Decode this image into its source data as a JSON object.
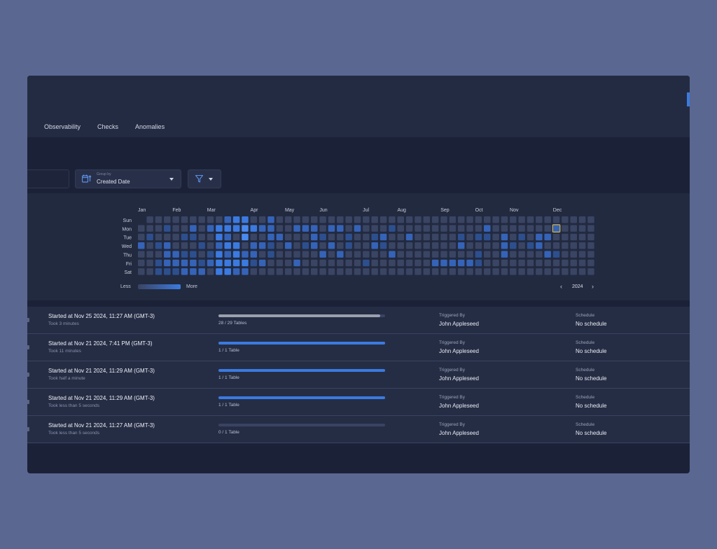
{
  "tabs": [
    "Observability",
    "Checks",
    "Anomalies"
  ],
  "date_select": {
    "small_label": "Group by",
    "value": "Created Date"
  },
  "heatmap": {
    "days": [
      "Sun",
      "Mon",
      "Tue",
      "Wed",
      "Thu",
      "Fri",
      "Sat"
    ],
    "months": [
      "Jan",
      "Feb",
      "Mar",
      "Apr",
      "May",
      "Jun",
      "Jul",
      "Aug",
      "Sep",
      "Oct",
      "Nov",
      "Dec"
    ],
    "month_start_weeks": [
      0,
      4,
      8,
      13,
      17,
      21,
      26,
      30,
      35,
      39,
      43,
      48
    ],
    "weeks": 53,
    "year": "2024",
    "legend_less": "Less",
    "legend_more": "More",
    "highlight": {
      "week": 48,
      "day": 1
    },
    "colors": [
      "#3a4463",
      "#2d4f8e",
      "#3563b8",
      "#3b7ae0",
      "#4a8af0"
    ],
    "active": [
      [
        0,
        3,
        2
      ],
      [
        1,
        2,
        1
      ],
      [
        2,
        3,
        1
      ],
      [
        2,
        5,
        1
      ],
      [
        2,
        6,
        1
      ],
      [
        3,
        1,
        1
      ],
      [
        3,
        3,
        2
      ],
      [
        3,
        4,
        2
      ],
      [
        3,
        5,
        2
      ],
      [
        3,
        6,
        1
      ],
      [
        4,
        4,
        2
      ],
      [
        4,
        5,
        2
      ],
      [
        4,
        6,
        1
      ],
      [
        5,
        2,
        1
      ],
      [
        5,
        4,
        1
      ],
      [
        5,
        5,
        2
      ],
      [
        5,
        6,
        2
      ],
      [
        6,
        1,
        2
      ],
      [
        6,
        2,
        1
      ],
      [
        6,
        4,
        1
      ],
      [
        6,
        5,
        2
      ],
      [
        6,
        6,
        2
      ],
      [
        7,
        3,
        1
      ],
      [
        7,
        5,
        1
      ],
      [
        7,
        6,
        2
      ],
      [
        8,
        1,
        2
      ],
      [
        8,
        4,
        1
      ],
      [
        8,
        5,
        2
      ],
      [
        9,
        1,
        3
      ],
      [
        9,
        2,
        3
      ],
      [
        9,
        3,
        2
      ],
      [
        9,
        4,
        3
      ],
      [
        9,
        5,
        3
      ],
      [
        9,
        6,
        3
      ],
      [
        10,
        0,
        2
      ],
      [
        10,
        1,
        3
      ],
      [
        10,
        2,
        2
      ],
      [
        10,
        3,
        3
      ],
      [
        10,
        4,
        2
      ],
      [
        10,
        5,
        3
      ],
      [
        10,
        6,
        3
      ],
      [
        11,
        0,
        3
      ],
      [
        11,
        1,
        3
      ],
      [
        11,
        3,
        3
      ],
      [
        11,
        4,
        3
      ],
      [
        11,
        5,
        3
      ],
      [
        11,
        6,
        2
      ],
      [
        12,
        0,
        3
      ],
      [
        12,
        1,
        4
      ],
      [
        12,
        2,
        4
      ],
      [
        12,
        4,
        2
      ],
      [
        12,
        5,
        3
      ],
      [
        12,
        6,
        2
      ],
      [
        13,
        1,
        3
      ],
      [
        13,
        3,
        2
      ],
      [
        13,
        4,
        2
      ],
      [
        13,
        5,
        1
      ],
      [
        14,
        1,
        2
      ],
      [
        14,
        3,
        2
      ],
      [
        14,
        5,
        2
      ],
      [
        15,
        0,
        2
      ],
      [
        15,
        1,
        2
      ],
      [
        15,
        2,
        2
      ],
      [
        15,
        3,
        1
      ],
      [
        15,
        4,
        1
      ],
      [
        16,
        2,
        2
      ],
      [
        17,
        3,
        2
      ],
      [
        18,
        1,
        2
      ],
      [
        18,
        5,
        2
      ],
      [
        19,
        1,
        2
      ],
      [
        19,
        3,
        1
      ],
      [
        20,
        1,
        2
      ],
      [
        20,
        2,
        2
      ],
      [
        20,
        3,
        2
      ],
      [
        21,
        2,
        1
      ],
      [
        21,
        4,
        2
      ],
      [
        22,
        1,
        2
      ],
      [
        22,
        3,
        2
      ],
      [
        23,
        1,
        2
      ],
      [
        23,
        4,
        2
      ],
      [
        24,
        2,
        1
      ],
      [
        24,
        3,
        1
      ],
      [
        25,
        1,
        2
      ],
      [
        26,
        5,
        1
      ],
      [
        27,
        2,
        1
      ],
      [
        27,
        3,
        2
      ],
      [
        28,
        2,
        2
      ],
      [
        28,
        3,
        1
      ],
      [
        29,
        1,
        1
      ],
      [
        29,
        4,
        2
      ],
      [
        31,
        2,
        2
      ],
      [
        34,
        5,
        2
      ],
      [
        35,
        5,
        2
      ],
      [
        36,
        5,
        2
      ],
      [
        37,
        2,
        1
      ],
      [
        37,
        3,
        2
      ],
      [
        37,
        5,
        2
      ],
      [
        38,
        5,
        2
      ],
      [
        39,
        2,
        1
      ],
      [
        39,
        4,
        1
      ],
      [
        39,
        5,
        1
      ],
      [
        40,
        1,
        2
      ],
      [
        40,
        2,
        1
      ],
      [
        42,
        2,
        2
      ],
      [
        42,
        3,
        2
      ],
      [
        42,
        4,
        2
      ],
      [
        43,
        3,
        1
      ],
      [
        44,
        2,
        1
      ],
      [
        45,
        3,
        1
      ],
      [
        46,
        2,
        2
      ],
      [
        46,
        3,
        2
      ],
      [
        47,
        2,
        2
      ],
      [
        47,
        4,
        2
      ],
      [
        48,
        1,
        2
      ],
      [
        48,
        4,
        1
      ]
    ]
  },
  "runs": [
    {
      "title": "Started at Nov 25 2024, 11:27 AM (GMT-3)",
      "took": "Took 3 minutes",
      "progress": 0.97,
      "bar_color": "#9aa0ad",
      "progress_text": "28 / 29 Tables",
      "triggered_label": "Triggered By",
      "triggered_by": "John Appleseed",
      "schedule_label": "Schedule",
      "schedule": "No schedule"
    },
    {
      "title": "Started at Nov 21 2024, 7:41 PM (GMT-3)",
      "took": "Took 11 minutes",
      "progress": 1.0,
      "bar_color": "#3b7ae0",
      "progress_text": "1 / 1 Table",
      "triggered_label": "Triggered By",
      "triggered_by": "John Appleseed",
      "schedule_label": "Schedule",
      "schedule": "No schedule"
    },
    {
      "title": "Started at Nov 21 2024, 11:29 AM (GMT-3)",
      "took": "Took half a minute",
      "progress": 1.0,
      "bar_color": "#3b7ae0",
      "progress_text": "1 / 1 Table",
      "triggered_label": "Triggered By",
      "triggered_by": "John Appleseed",
      "schedule_label": "Schedule",
      "schedule": "No schedule"
    },
    {
      "title": "Started at Nov 21 2024, 11:29 AM (GMT-3)",
      "took": "Took less than 5 seconds",
      "progress": 1.0,
      "bar_color": "#3b7ae0",
      "progress_text": "1 / 1 Table",
      "triggered_label": "Triggered By",
      "triggered_by": "John Appleseed",
      "schedule_label": "Schedule",
      "schedule": "No schedule"
    },
    {
      "title": "Started at Nov 21 2024, 11:27 AM (GMT-3)",
      "took": "Took less than 5 seconds",
      "progress": 0.0,
      "bar_color": "#3b7ae0",
      "progress_text": "0 / 1 Table",
      "triggered_label": "Triggered By",
      "triggered_by": "John Appleseed",
      "schedule_label": "Schedule",
      "schedule": "No schedule"
    }
  ]
}
